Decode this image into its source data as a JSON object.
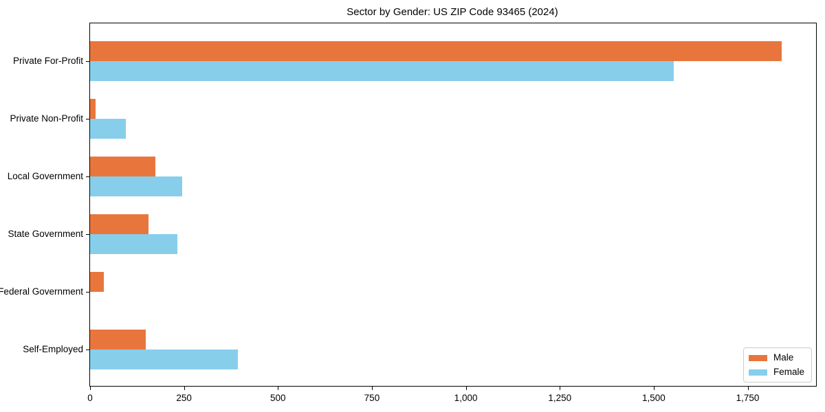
{
  "chart_data": {
    "type": "bar",
    "orientation": "horizontal",
    "title": "Sector by Gender: US ZIP Code 93465 (2024)",
    "categories": [
      "Private For-Profit",
      "Private Non-Profit",
      "Local Government",
      "State Government",
      "Federal Government",
      "Self-Employed"
    ],
    "series": [
      {
        "name": "Male",
        "color": "#e8763c",
        "values": [
          1840,
          14,
          174,
          156,
          37,
          148
        ]
      },
      {
        "name": "Female",
        "color": "#87ceeb",
        "values": [
          1554,
          95,
          245,
          233,
          0,
          394
        ]
      }
    ],
    "xlabel": "",
    "ylabel": "",
    "xlim": [
      0,
      1932
    ],
    "xticks": [
      0,
      250,
      500,
      750,
      1000,
      1250,
      1500,
      1750
    ],
    "xtick_labels": [
      "0",
      "250",
      "500",
      "750",
      "1,000",
      "1,250",
      "1,500",
      "1,750"
    ],
    "legend": {
      "position": "lower right",
      "entries": [
        "Male",
        "Female"
      ]
    },
    "grid": false,
    "series_layout": "Male bar above Female bar within each category group"
  }
}
